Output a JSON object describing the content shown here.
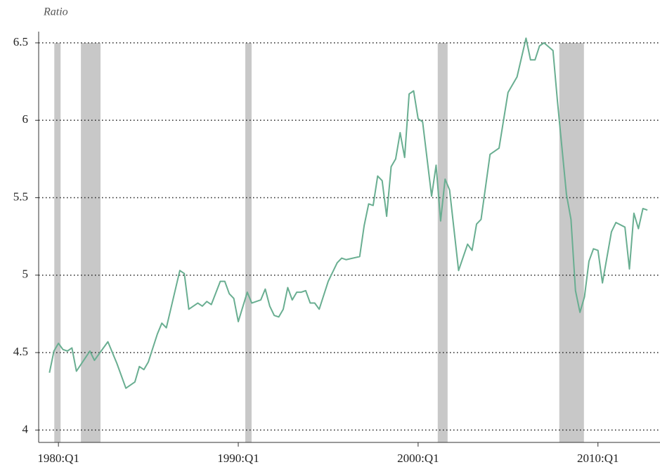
{
  "chart_data": {
    "type": "line",
    "y_label": "Ratio",
    "x": [
      1979.5,
      1979.75,
      1980.0,
      1980.25,
      1980.5,
      1980.75,
      1981.0,
      1981.75,
      1982.0,
      1982.75,
      1983.25,
      1983.75,
      1984.25,
      1984.5,
      1984.75,
      1985.0,
      1985.5,
      1985.75,
      1986.0,
      1986.75,
      1987.0,
      1987.25,
      1987.75,
      1988.0,
      1988.25,
      1988.5,
      1989.0,
      1989.25,
      1989.5,
      1989.75,
      1990.0,
      1990.5,
      1990.75,
      1991.25,
      1991.5,
      1991.75,
      1992.0,
      1992.25,
      1992.5,
      1992.75,
      1993.0,
      1993.25,
      1993.5,
      1993.75,
      1994.0,
      1994.25,
      1994.5,
      1995.0,
      1995.5,
      1995.75,
      1996.0,
      1996.75,
      1997.0,
      1997.25,
      1997.5,
      1997.75,
      1998.0,
      1998.25,
      1998.5,
      1998.75,
      1999.0,
      1999.25,
      1999.5,
      1999.75,
      2000.0,
      2000.25,
      2000.75,
      2001.0,
      2001.25,
      2001.5,
      2001.75,
      2002.25,
      2002.75,
      2003.0,
      2003.25,
      2003.5,
      2004.0,
      2004.5,
      2005.0,
      2005.5,
      2006.0,
      2006.25,
      2006.5,
      2006.75,
      2007.0,
      2007.5,
      2007.75,
      2008.25,
      2008.5,
      2008.75,
      2009.0,
      2009.25,
      2009.5,
      2009.75,
      2010.0,
      2010.25,
      2010.75,
      2011.0,
      2011.5,
      2011.75,
      2012.0,
      2012.25,
      2012.5,
      2012.75
    ],
    "series": [
      {
        "color": "#69ae91",
        "values": [
          4.37,
          4.51,
          4.56,
          4.52,
          4.51,
          4.53,
          4.38,
          4.51,
          4.45,
          4.57,
          4.43,
          4.27,
          4.31,
          4.41,
          4.39,
          4.44,
          4.62,
          4.69,
          4.66,
          5.03,
          5.01,
          4.78,
          4.82,
          4.8,
          4.83,
          4.81,
          4.96,
          4.96,
          4.88,
          4.85,
          4.7,
          4.89,
          4.82,
          4.84,
          4.91,
          4.8,
          4.74,
          4.73,
          4.78,
          4.92,
          4.84,
          4.89,
          4.89,
          4.9,
          4.82,
          4.82,
          4.78,
          4.96,
          5.08,
          5.11,
          5.1,
          5.12,
          5.32,
          5.46,
          5.45,
          5.64,
          5.61,
          5.38,
          5.7,
          5.75,
          5.92,
          5.76,
          6.17,
          6.19,
          6.01,
          5.99,
          5.51,
          5.71,
          5.35,
          5.62,
          5.55,
          5.03,
          5.2,
          5.16,
          5.33,
          5.36,
          5.78,
          5.82,
          6.18,
          6.28,
          6.53,
          6.39,
          6.39,
          6.48,
          6.5,
          6.45,
          6.12,
          5.52,
          5.36,
          4.9,
          4.76,
          4.86,
          5.09,
          5.17,
          5.16,
          4.95,
          5.28,
          5.34,
          5.31,
          5.04,
          5.4,
          5.3,
          5.43,
          5.42
        ]
      }
    ],
    "recessions": [
      [
        1979.77,
        1980.12
      ],
      [
        1981.25,
        1982.34
      ],
      [
        1990.39,
        1990.74
      ],
      [
        2001.09,
        2001.64
      ],
      [
        2007.85,
        2009.22
      ]
    ],
    "recession_color": "#c8c8c8",
    "xlim": [
      1978.9,
      2013.45
    ],
    "xticks": [
      {
        "value": 1980,
        "label": "1980:Q1"
      },
      {
        "value": 1990,
        "label": "1990:Q1"
      },
      {
        "value": 2000,
        "label": "2000:Q1"
      },
      {
        "value": 2010,
        "label": "2010:Q1"
      }
    ],
    "ylim": [
      3.92,
      6.5
    ],
    "yticks": [
      4,
      4.5,
      5,
      5.5,
      6,
      6.5
    ],
    "grid": true
  }
}
